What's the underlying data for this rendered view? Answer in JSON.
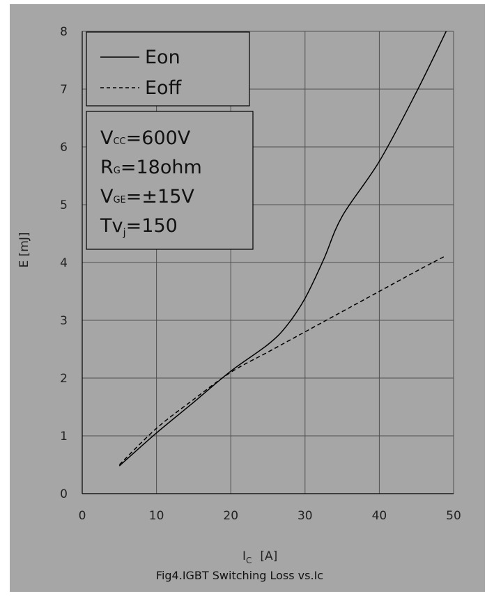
{
  "chart_data": {
    "type": "line",
    "caption": "Fig4.IGBT Switching Loss vs.Ic",
    "xlabel": {
      "main": "I",
      "sub": "C",
      "unit": "[A]"
    },
    "ylabel": "E [mJ]",
    "xlim": [
      0,
      50
    ],
    "ylim": [
      0,
      8
    ],
    "xticks": [
      0,
      10,
      20,
      30,
      40,
      50
    ],
    "yticks": [
      0,
      1,
      2,
      3,
      4,
      5,
      6,
      7,
      8
    ],
    "grid": true,
    "legend_position": "top-left",
    "series": [
      {
        "name": "Eon",
        "line_style": "solid",
        "color": "#000000",
        "x": [
          5,
          10,
          15,
          20,
          25,
          27.5,
          30,
          32.5,
          35,
          40,
          45,
          49
        ],
        "y": [
          0.48,
          1.05,
          1.58,
          2.12,
          2.58,
          2.9,
          3.38,
          4.05,
          4.8,
          5.75,
          6.95,
          8.0
        ]
      },
      {
        "name": "Eoff",
        "line_style": "dashed",
        "color": "#000000",
        "x": [
          5,
          10,
          15,
          20,
          25,
          30,
          35,
          40,
          45,
          49
        ],
        "y": [
          0.5,
          1.13,
          1.63,
          2.1,
          2.45,
          2.8,
          3.15,
          3.5,
          3.85,
          4.12
        ]
      }
    ],
    "conditions": [
      {
        "main": "V",
        "sub": "CC",
        "rest": "=600V"
      },
      {
        "main": "R",
        "sub": "G",
        "rest": "=18ohm"
      },
      {
        "main": "V",
        "sub": "GE",
        "rest": "=±15V"
      },
      {
        "main": "Tv",
        "sub": "j",
        "rest": "=150"
      }
    ]
  },
  "colors": {
    "background": "#a6a6a6",
    "grid": "#505050",
    "axis": "#000000",
    "box_border": "#000000"
  }
}
